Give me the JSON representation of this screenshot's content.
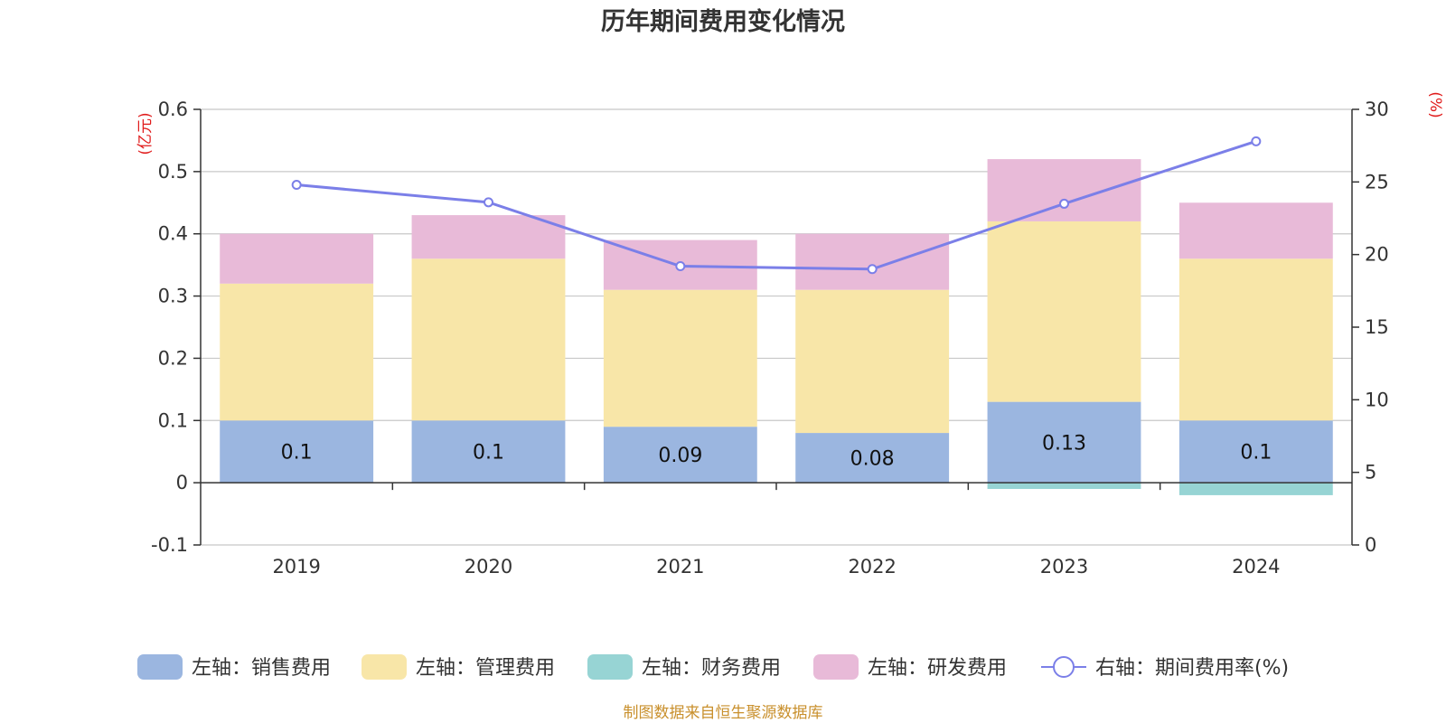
{
  "chart_data": {
    "type": "bar",
    "title": "历年期间费用变化情况",
    "categories": [
      "2019",
      "2020",
      "2021",
      "2022",
      "2023",
      "2024"
    ],
    "left_axis": {
      "unit": "(亿元)",
      "min": -0.1,
      "max": 0.6,
      "ticks": [
        "-0.1",
        "0",
        "0.1",
        "0.2",
        "0.3",
        "0.4",
        "0.5",
        "0.6"
      ]
    },
    "right_axis": {
      "unit": "(%)",
      "min": 0,
      "max": 30,
      "ticks": [
        "0",
        "5",
        "10",
        "15",
        "20",
        "25",
        "30"
      ]
    },
    "series": [
      {
        "name": "左轴：销售费用",
        "type": "bar",
        "axis": "left",
        "color": "#9bb6e0",
        "values": [
          0.1,
          0.1,
          0.09,
          0.08,
          0.13,
          0.1
        ],
        "labels": [
          "0.1",
          "0.1",
          "0.09",
          "0.08",
          "0.13",
          "0.1"
        ]
      },
      {
        "name": "左轴：管理费用",
        "type": "bar",
        "axis": "left",
        "color": "#f8e6a8",
        "values": [
          0.22,
          0.26,
          0.22,
          0.23,
          0.29,
          0.26
        ]
      },
      {
        "name": "左轴：财务费用",
        "type": "bar",
        "axis": "left",
        "color": "#97d4d4",
        "values": [
          0.0,
          0.0,
          0.0,
          0.0,
          -0.01,
          -0.02
        ]
      },
      {
        "name": "左轴：研发费用",
        "type": "bar",
        "axis": "left",
        "color": "#e8bad8",
        "values": [
          0.08,
          0.07,
          0.08,
          0.09,
          0.1,
          0.09
        ]
      },
      {
        "name": "右轴：期间费用率(%)",
        "type": "line",
        "axis": "right",
        "color": "#7b7fe8",
        "values": [
          24.8,
          23.6,
          19.2,
          19.0,
          23.5,
          27.8
        ]
      }
    ],
    "legend_position": "bottom",
    "grid": true
  },
  "source_note": "制图数据来自恒生聚源数据库"
}
